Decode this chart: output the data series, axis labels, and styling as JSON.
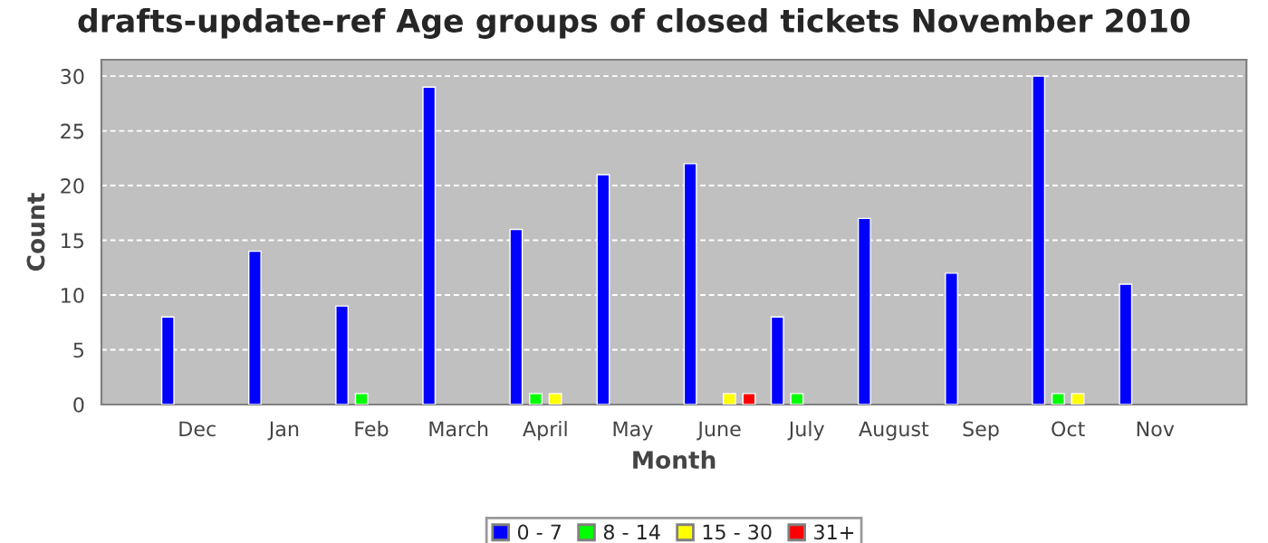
{
  "chart_data": {
    "type": "bar",
    "title": "drafts-update-ref Age groups of closed tickets November 2010",
    "xlabel": "Month",
    "ylabel": "Count",
    "categories": [
      "Dec",
      "Jan",
      "Feb",
      "March",
      "April",
      "May",
      "June",
      "July",
      "August",
      "Sep",
      "Oct",
      "Nov"
    ],
    "series": [
      {
        "name": "0 - 7",
        "color": "#0000ff",
        "values": [
          8,
          14,
          9,
          29,
          16,
          21,
          22,
          8,
          17,
          12,
          30,
          11
        ]
      },
      {
        "name": "8 - 14",
        "color": "#00ff00",
        "values": [
          null,
          null,
          1,
          null,
          1,
          null,
          null,
          1,
          null,
          null,
          1,
          null
        ]
      },
      {
        "name": "15 - 30",
        "color": "#ffff00",
        "values": [
          null,
          null,
          null,
          null,
          1,
          null,
          1,
          null,
          null,
          null,
          1,
          null
        ]
      },
      {
        "name": "31+",
        "color": "#ff0000",
        "values": [
          null,
          null,
          null,
          null,
          null,
          null,
          1,
          null,
          null,
          null,
          null,
          null
        ]
      }
    ],
    "ylim": [
      0,
      31.5
    ],
    "yticks": [
      0,
      5,
      10,
      15,
      20,
      25,
      30
    ],
    "grid": "y",
    "legend": "bottom"
  }
}
